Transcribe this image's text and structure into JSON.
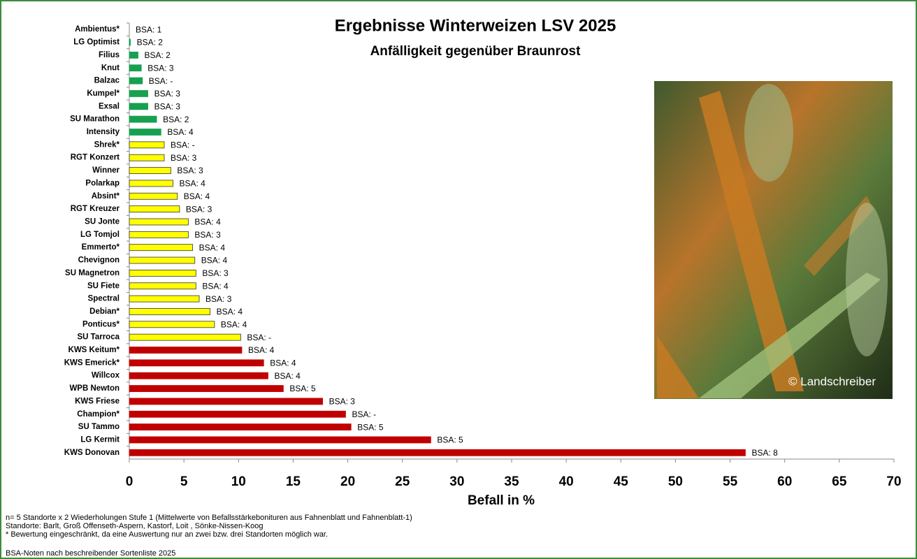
{
  "chart_data": {
    "type": "bar",
    "orientation": "horizontal",
    "title": "Ergebnisse Winterweizen LSV 2025",
    "subtitle": "Anfälligkeit gegenüber Braunrost",
    "x_label": "Befall in %",
    "categories": [
      "Ambientus*",
      "LG Optimist",
      "Filius",
      "Knut",
      "Balzac",
      "Kumpel*",
      "Exsal",
      "SU Marathon",
      "Intensity",
      "Shrek*",
      "RGT Konzert",
      "Winner",
      "Polarkap",
      "Absint*",
      "RGT Kreuzer",
      "SU Jonte",
      "LG Tomjol",
      "Emmerto*",
      "Chevignon",
      "SU Magnetron",
      "SU Fiete",
      "Spectral",
      "Debian*",
      "Ponticus*",
      "SU Tarroca",
      "KWS Keitum*",
      "KWS Emerick*",
      "Willcox",
      "WPB Newton",
      "KWS Friese",
      "Champion*",
      "SU Tammo",
      "LG Kermit",
      "KWS Donovan"
    ],
    "values": [
      0,
      0.1,
      0.8,
      1.1,
      1.2,
      1.7,
      1.7,
      2.5,
      2.9,
      3.2,
      3.2,
      3.8,
      4.0,
      4.4,
      4.6,
      5.4,
      5.4,
      5.8,
      6.0,
      6.1,
      6.1,
      6.4,
      7.4,
      7.8,
      10.2,
      10.3,
      12.3,
      12.7,
      14.1,
      17.7,
      19.8,
      20.3,
      27.6,
      56.4
    ],
    "annotations": [
      "BSA: 1",
      "BSA: 2",
      "BSA: 2",
      "BSA: 3",
      "BSA: -",
      "BSA: 3",
      "BSA: 3",
      "BSA: 2",
      "BSA: 4",
      "BSA: -",
      "BSA: 3",
      "BSA: 3",
      "BSA: 4",
      "BSA: 4",
      "BSA: 3",
      "BSA: 4",
      "BSA: 3",
      "BSA: 4",
      "BSA: 4",
      "BSA: 3",
      "BSA: 4",
      "BSA: 3",
      "BSA: 4",
      "BSA: 4",
      "BSA: -",
      "BSA: 4",
      "BSA: 4",
      "BSA: 4",
      "BSA: 5",
      "BSA: 3",
      "BSA: -",
      "BSA: 5",
      "BSA: 5",
      "BSA: 8"
    ],
    "colors": [
      "#17a050",
      "#17a050",
      "#17a050",
      "#17a050",
      "#17a050",
      "#17a050",
      "#17a050",
      "#17a050",
      "#17a050",
      "#ffff00",
      "#ffff00",
      "#ffff00",
      "#ffff00",
      "#ffff00",
      "#ffff00",
      "#ffff00",
      "#ffff00",
      "#ffff00",
      "#ffff00",
      "#ffff00",
      "#ffff00",
      "#ffff00",
      "#ffff00",
      "#ffff00",
      "#ffff00",
      "#c00000",
      "#c00000",
      "#c00000",
      "#c00000",
      "#c00000",
      "#c00000",
      "#c00000",
      "#c00000",
      "#c00000"
    ],
    "xlim": [
      0,
      70
    ],
    "xticks": [
      0,
      5,
      10,
      15,
      20,
      25,
      30,
      35,
      40,
      45,
      50,
      55,
      60,
      65,
      70
    ],
    "image_credit": "© Landschreiber",
    "footnotes": [
      "n= 5 Standorte x 2 Wiederholungen Stufe 1  (Mittelwerte von Befallsstärkebonituren aus Fahnenblatt und Fahnenblatt-1)",
      "Standorte: Barlt, Groß Offenseth-Aspern, Kastorf, Loit , Sönke-Nissen-Koog",
      "* Bewertung eingeschränkt, da eine Auswertung nur an zwei bzw. drei Standorten möglich war.",
      "BSA-Noten nach beschreibender Sortenliste 2025"
    ]
  }
}
